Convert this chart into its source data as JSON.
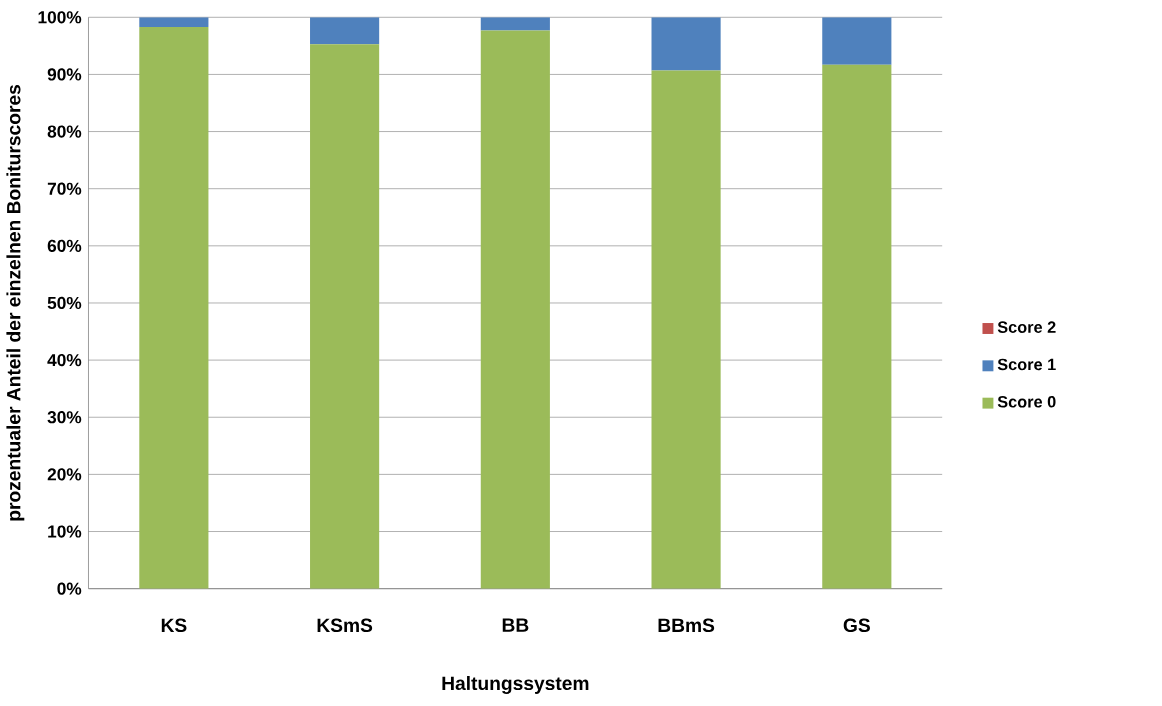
{
  "chart_data": {
    "type": "bar",
    "stacked": true,
    "xlabel": "Haltungssystem",
    "ylabel": "prozentualer Anteil der einzelnen Boniturscores",
    "categories": [
      "KS",
      "KSmS",
      "BB",
      "BBmS",
      "GS"
    ],
    "series": [
      {
        "name": "Score 0",
        "color": "#9bbb59",
        "values": [
          98.3,
          95.3,
          97.7,
          90.7,
          91.7
        ]
      },
      {
        "name": "Score 1",
        "color": "#4f81bd",
        "values": [
          1.7,
          4.7,
          2.3,
          9.3,
          8.3
        ]
      },
      {
        "name": "Score 2",
        "color": "#c0504d",
        "values": [
          0,
          0,
          0,
          0,
          0
        ]
      }
    ],
    "ylim": [
      0,
      100
    ],
    "yticks": [
      {
        "value": 0,
        "label": "0%"
      },
      {
        "value": 10,
        "label": "10%"
      },
      {
        "value": 20,
        "label": "20%"
      },
      {
        "value": 30,
        "label": "30%"
      },
      {
        "value": 40,
        "label": "40%"
      },
      {
        "value": 50,
        "label": "50%"
      },
      {
        "value": 60,
        "label": "60%"
      },
      {
        "value": 70,
        "label": "70%"
      },
      {
        "value": 80,
        "label": "80%"
      },
      {
        "value": 90,
        "label": "90%"
      },
      {
        "value": 100,
        "label": "100%"
      }
    ],
    "grid": "y",
    "legend": "right"
  }
}
